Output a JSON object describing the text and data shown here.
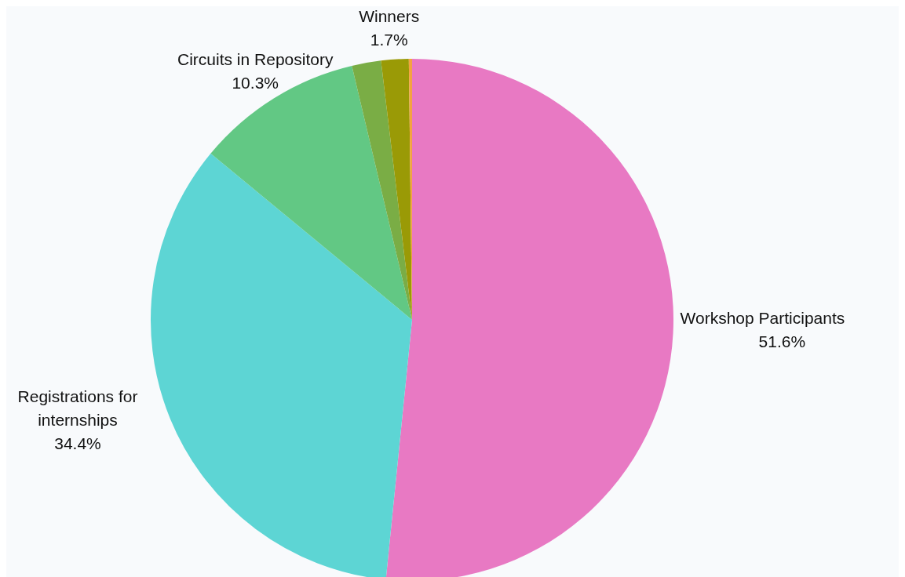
{
  "chart_data": {
    "type": "pie",
    "categories": [
      "Workshop Participants",
      "Registrations for internships",
      "Circuits in Repository",
      null,
      "Winners",
      null
    ],
    "values": [
      51.6,
      34.4,
      10.3,
      1.8,
      1.7,
      0.2
    ],
    "value_labels": [
      "51.6%",
      "34.4%",
      "10.3%",
      null,
      "1.7%",
      null
    ],
    "colors": [
      "#e879c3",
      "#5dd5d4",
      "#62c884",
      "#7aad45",
      "#9a9a06",
      "#f4a340"
    ],
    "legend": false
  }
}
